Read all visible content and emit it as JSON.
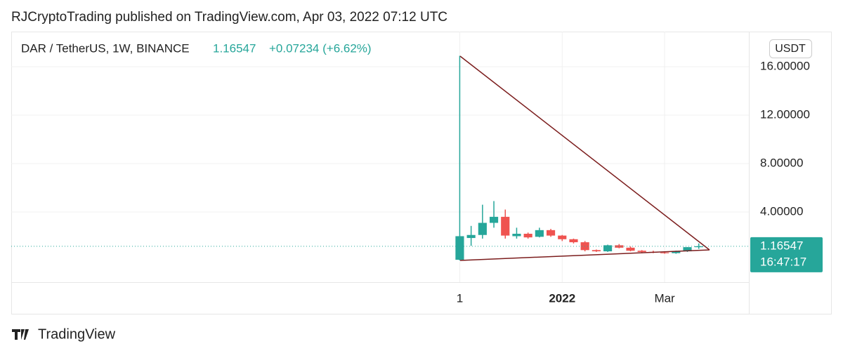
{
  "header": "RJCryptoTrading published on TradingView.com, Apr 03, 2022 07:12 UTC",
  "footer": "TradingView",
  "chart_data": {
    "type": "candlestick",
    "title": "DAR / TetherUS, 1W, BINANCE",
    "last_price": 1.16547,
    "change_text": "+0.07234 (+6.62%)",
    "countdown": "16:47:17",
    "currency": "USDT",
    "up_color": "#26a69a",
    "down_color": "#ef5350",
    "x": [
      0,
      1,
      2,
      3,
      4,
      5,
      6,
      7,
      8,
      9,
      10,
      11,
      12,
      13,
      14,
      15,
      16,
      17,
      18,
      19,
      20,
      21
    ],
    "open": [
      0.05,
      1.85,
      2.1,
      3.1,
      3.6,
      2.0,
      2.2,
      1.95,
      2.5,
      2.05,
      1.75,
      1.5,
      0.85,
      0.75,
      1.25,
      1.05,
      0.8,
      0.7,
      0.65,
      0.6,
      0.75,
      1.09313
    ],
    "high": [
      16.9,
      2.85,
      4.6,
      4.9,
      4.2,
      2.7,
      2.3,
      2.7,
      2.6,
      2.1,
      1.8,
      1.6,
      0.9,
      1.3,
      1.35,
      1.15,
      0.85,
      0.8,
      0.7,
      0.8,
      1.1,
      1.4
    ],
    "low": [
      0.0,
      1.2,
      1.8,
      2.7,
      1.8,
      1.8,
      1.8,
      1.9,
      1.95,
      1.6,
      1.4,
      0.75,
      0.7,
      0.7,
      1.0,
      0.75,
      0.6,
      0.6,
      0.55,
      0.55,
      0.7,
      0.95
    ],
    "close": [
      2.0,
      2.1,
      3.1,
      3.6,
      2.05,
      2.2,
      1.9,
      2.5,
      2.05,
      1.75,
      1.5,
      0.85,
      0.75,
      1.25,
      1.05,
      0.8,
      0.7,
      0.65,
      0.6,
      0.75,
      1.09313,
      1.16547
    ],
    "xlim": [
      -39.4,
      25.4
    ],
    "xticks": [
      {
        "value": 0,
        "label": "1"
      },
      {
        "value": 9,
        "label": "2022"
      },
      {
        "value": 18,
        "label": "Mar"
      }
    ],
    "ylim": [
      -1.8,
      18.9
    ],
    "yticks": [
      {
        "value": 4,
        "label": "4.00000"
      },
      {
        "value": 8,
        "label": "8.00000"
      },
      {
        "value": 12,
        "label": "12.00000"
      },
      {
        "value": 16,
        "label": "16.00000"
      }
    ],
    "grid": true
  }
}
